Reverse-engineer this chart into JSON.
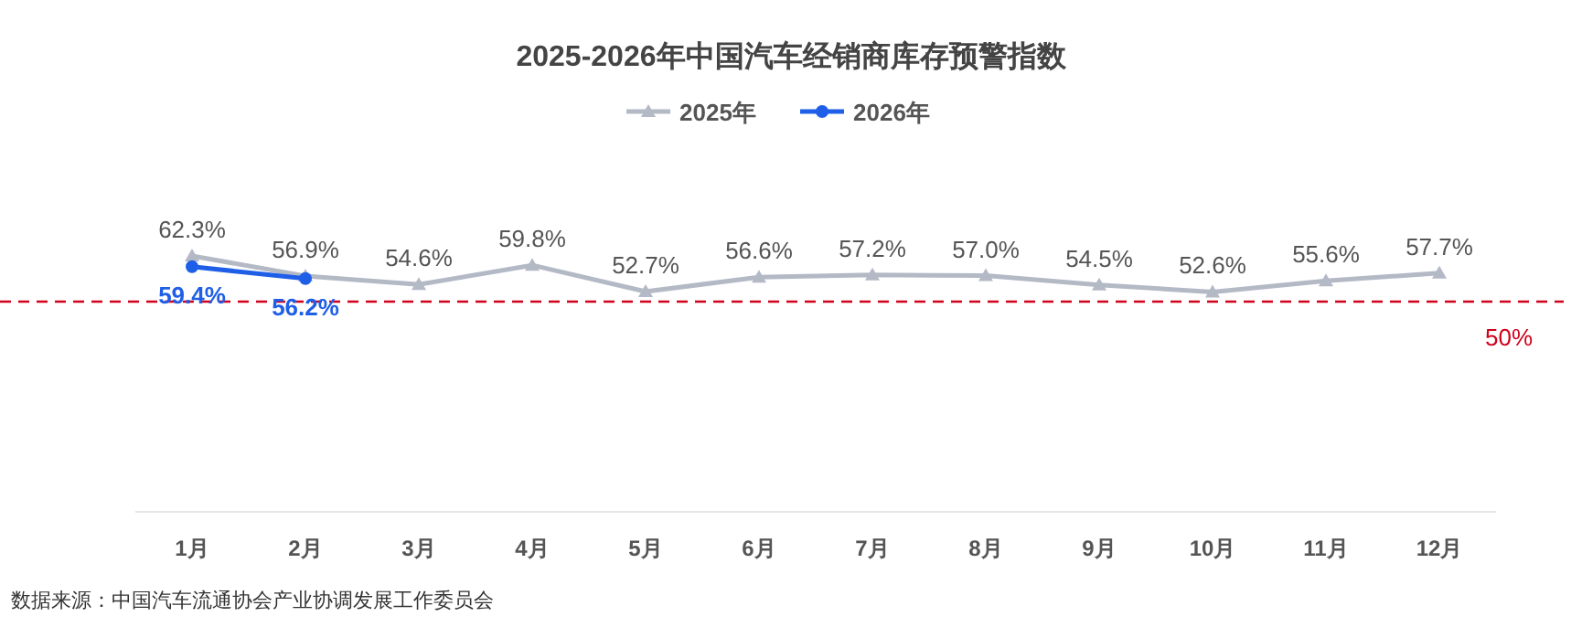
{
  "chart_data": {
    "type": "line",
    "title": "2025-2026年中国汽车经销商库存预警指数",
    "categories": [
      "1月",
      "2月",
      "3月",
      "4月",
      "5月",
      "6月",
      "7月",
      "8月",
      "9月",
      "10月",
      "11月",
      "12月"
    ],
    "series": [
      {
        "name": "2025年",
        "color": "#b4b9c6",
        "marker": "triangle",
        "values": [
          62.3,
          56.9,
          54.6,
          59.8,
          52.7,
          56.6,
          57.2,
          57.0,
          54.5,
          52.6,
          55.6,
          57.7
        ],
        "value_labels": [
          "62.3%",
          "56.9%",
          "54.6%",
          "59.8%",
          "52.7%",
          "56.6%",
          "57.2%",
          "57.0%",
          "54.5%",
          "52.6%",
          "55.6%",
          "57.7%"
        ]
      },
      {
        "name": "2026年",
        "color": "#1f5fe8",
        "marker": "circle",
        "values": [
          59.4,
          56.2,
          null,
          null,
          null,
          null,
          null,
          null,
          null,
          null,
          null,
          null
        ],
        "value_labels": [
          "59.4%",
          "56.2%",
          null,
          null,
          null,
          null,
          null,
          null,
          null,
          null,
          null,
          null
        ]
      }
    ],
    "tick_labels": "x",
    "legend": "top",
    "ref_lines": [
      {
        "axis": "y",
        "value": 50,
        "label": "50%",
        "color": "#d0021b",
        "line_style": "dashed"
      }
    ],
    "annotations": [
      "数据来源：中国汽车流通协会产业协调发展工作委员会"
    ]
  }
}
